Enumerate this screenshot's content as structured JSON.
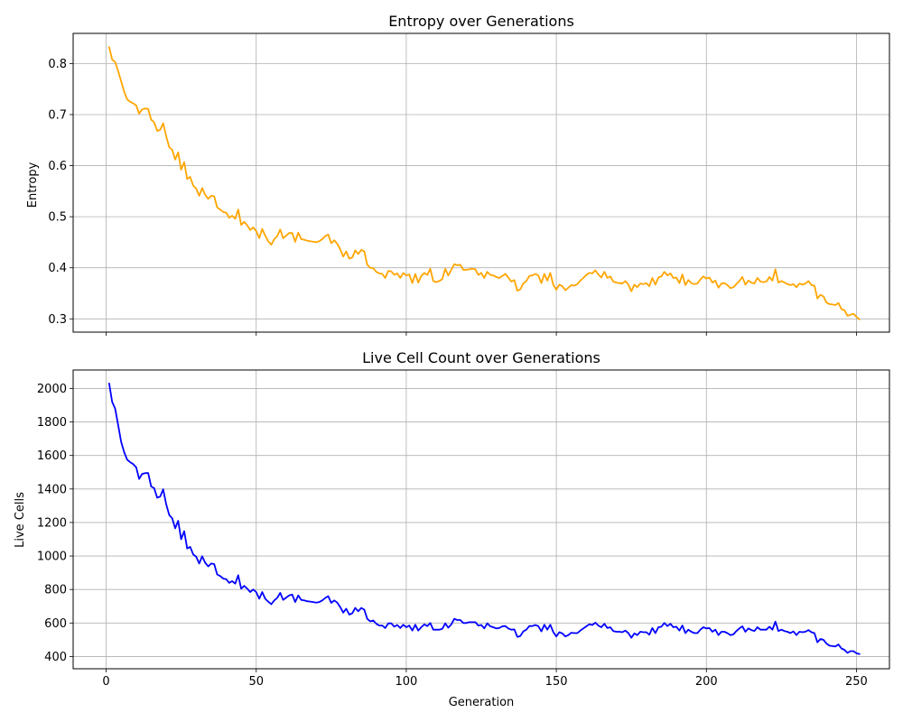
{
  "figure": {
    "xlabel": "Generation",
    "xticks": [
      0,
      50,
      100,
      150,
      200,
      250
    ],
    "xlim": [
      -11,
      261
    ]
  },
  "chart_data": [
    {
      "type": "line",
      "title": "Entropy over Generations",
      "xlabel": "",
      "ylabel": "Entropy",
      "xlim": [
        -11,
        261
      ],
      "ylim": [
        0.274,
        0.859
      ],
      "yticks": [
        0.3,
        0.4,
        0.5,
        0.6,
        0.7,
        0.8
      ],
      "ytick_labels": [
        "0.3",
        "0.4",
        "0.5",
        "0.6",
        "0.7",
        "0.8"
      ],
      "grid": true,
      "color": "#ffa500",
      "series": [
        {
          "x_start": 1,
          "x_step": 1,
          "values": [
            0.832,
            0.808,
            0.803,
            0.785,
            0.765,
            0.745,
            0.73,
            0.725,
            0.722,
            0.718,
            0.702,
            0.71,
            0.712,
            0.711,
            0.69,
            0.685,
            0.668,
            0.67,
            0.683,
            0.658,
            0.636,
            0.631,
            0.612,
            0.626,
            0.592,
            0.607,
            0.574,
            0.578,
            0.561,
            0.555,
            0.541,
            0.556,
            0.543,
            0.535,
            0.541,
            0.54,
            0.518,
            0.514,
            0.509,
            0.508,
            0.498,
            0.502,
            0.496,
            0.514,
            0.484,
            0.49,
            0.483,
            0.474,
            0.479,
            0.472,
            0.458,
            0.476,
            0.463,
            0.452,
            0.445,
            0.456,
            0.462,
            0.475,
            0.458,
            0.463,
            0.468,
            0.468,
            0.451,
            0.469,
            0.456,
            0.455,
            0.453,
            0.452,
            0.451,
            0.45,
            0.452,
            0.456,
            0.462,
            0.465,
            0.448,
            0.454,
            0.447,
            0.436,
            0.422,
            0.432,
            0.418,
            0.42,
            0.434,
            0.427,
            0.435,
            0.432,
            0.406,
            0.4,
            0.399,
            0.392,
            0.389,
            0.388,
            0.38,
            0.394,
            0.393,
            0.386,
            0.389,
            0.38,
            0.39,
            0.385,
            0.387,
            0.37,
            0.388,
            0.371,
            0.384,
            0.39,
            0.386,
            0.398,
            0.374,
            0.372,
            0.374,
            0.378,
            0.398,
            0.385,
            0.396,
            0.407,
            0.405,
            0.406,
            0.396,
            0.396,
            0.397,
            0.398,
            0.397,
            0.386,
            0.39,
            0.38,
            0.392,
            0.386,
            0.385,
            0.382,
            0.38,
            0.384,
            0.388,
            0.381,
            0.373,
            0.376,
            0.355,
            0.358,
            0.369,
            0.374,
            0.384,
            0.385,
            0.388,
            0.385,
            0.37,
            0.388,
            0.375,
            0.39,
            0.366,
            0.357,
            0.367,
            0.364,
            0.356,
            0.361,
            0.366,
            0.365,
            0.368,
            0.375,
            0.38,
            0.386,
            0.39,
            0.389,
            0.395,
            0.387,
            0.381,
            0.392,
            0.38,
            0.383,
            0.373,
            0.371,
            0.37,
            0.369,
            0.374,
            0.367,
            0.354,
            0.367,
            0.362,
            0.369,
            0.368,
            0.37,
            0.364,
            0.38,
            0.367,
            0.381,
            0.383,
            0.392,
            0.385,
            0.389,
            0.38,
            0.381,
            0.37,
            0.387,
            0.366,
            0.376,
            0.37,
            0.368,
            0.369,
            0.377,
            0.383,
            0.379,
            0.381,
            0.371,
            0.375,
            0.361,
            0.369,
            0.37,
            0.366,
            0.36,
            0.362,
            0.368,
            0.374,
            0.382,
            0.367,
            0.375,
            0.371,
            0.369,
            0.38,
            0.373,
            0.372,
            0.373,
            0.382,
            0.375,
            0.397,
            0.371,
            0.374,
            0.371,
            0.368,
            0.366,
            0.368,
            0.362,
            0.369,
            0.367,
            0.369,
            0.374,
            0.366,
            0.365,
            0.34,
            0.347,
            0.344,
            0.332,
            0.329,
            0.328,
            0.327,
            0.331,
            0.319,
            0.317,
            0.306,
            0.308,
            0.31,
            0.304,
            0.299
          ]
        }
      ]
    },
    {
      "type": "line",
      "title": "Live Cell Count over Generations",
      "xlabel": "Generation",
      "ylabel": "Live Cells",
      "xlim": [
        -11,
        261
      ],
      "ylim": [
        327,
        2110
      ],
      "yticks": [
        400,
        600,
        800,
        1000,
        1200,
        1400,
        1600,
        1800,
        2000
      ],
      "ytick_labels": [
        "400",
        "600",
        "800",
        "1000",
        "1200",
        "1400",
        "1600",
        "1800",
        "2000"
      ],
      "grid": true,
      "color": "#0000ff",
      "series": [
        {
          "x_start": 1,
          "x_step": 1,
          "values": [
            2030,
            1920,
            1880,
            1780,
            1680,
            1620,
            1575,
            1560,
            1548,
            1530,
            1460,
            1490,
            1495,
            1495,
            1415,
            1405,
            1348,
            1355,
            1398,
            1310,
            1245,
            1225,
            1165,
            1210,
            1100,
            1148,
            1045,
            1055,
            1010,
            995,
            955,
            998,
            960,
            938,
            955,
            952,
            890,
            880,
            865,
            862,
            840,
            850,
            835,
            885,
            805,
            822,
            805,
            785,
            800,
            785,
            745,
            785,
            745,
            728,
            712,
            735,
            750,
            780,
            738,
            752,
            765,
            770,
            725,
            765,
            738,
            735,
            730,
            728,
            725,
            722,
            725,
            735,
            750,
            760,
            720,
            735,
            722,
            695,
            662,
            685,
            650,
            658,
            690,
            670,
            690,
            680,
            625,
            610,
            615,
            595,
            585,
            585,
            570,
            598,
            598,
            578,
            588,
            570,
            590,
            575,
            585,
            555,
            590,
            555,
            575,
            592,
            582,
            600,
            560,
            560,
            560,
            565,
            598,
            572,
            592,
            625,
            618,
            618,
            600,
            600,
            605,
            605,
            605,
            585,
            588,
            568,
            598,
            580,
            575,
            568,
            570,
            580,
            582,
            568,
            560,
            562,
            517,
            522,
            550,
            560,
            582,
            582,
            588,
            582,
            550,
            590,
            560,
            590,
            545,
            520,
            545,
            538,
            520,
            528,
            542,
            540,
            540,
            555,
            568,
            580,
            592,
            588,
            602,
            585,
            575,
            595,
            570,
            575,
            552,
            548,
            548,
            545,
            555,
            540,
            512,
            538,
            528,
            548,
            545,
            545,
            530,
            570,
            540,
            575,
            578,
            600,
            582,
            595,
            575,
            578,
            555,
            585,
            540,
            560,
            548,
            540,
            540,
            560,
            575,
            568,
            570,
            548,
            560,
            528,
            548,
            548,
            540,
            528,
            532,
            552,
            568,
            580,
            548,
            568,
            558,
            552,
            575,
            560,
            560,
            560,
            578,
            560,
            608,
            552,
            560,
            552,
            548,
            540,
            550,
            528,
            548,
            545,
            548,
            558,
            545,
            540,
            485,
            505,
            500,
            478,
            465,
            462,
            460,
            472,
            448,
            440,
            422,
            432,
            432,
            420,
            415
          ]
        }
      ]
    }
  ]
}
